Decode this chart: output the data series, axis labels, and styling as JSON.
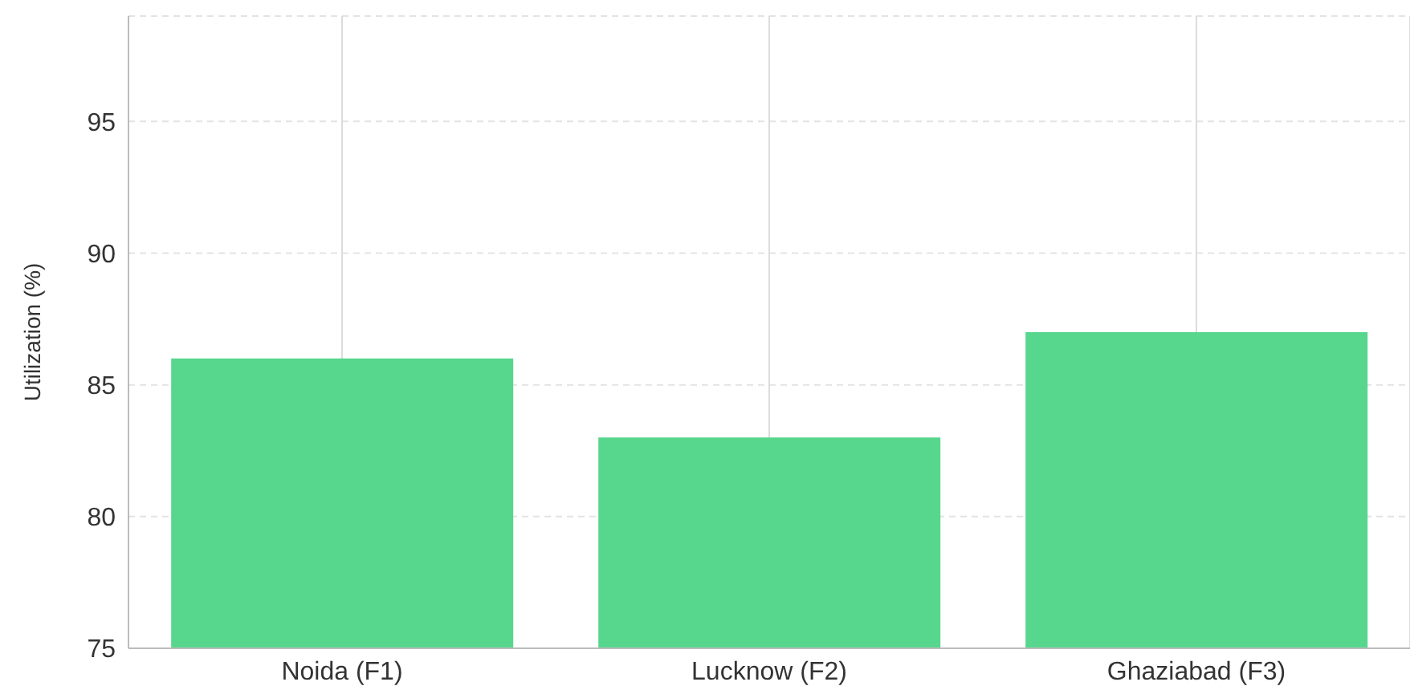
{
  "chart_data": {
    "type": "bar",
    "ylabel": "Utilization (%)",
    "categories": [
      "Noida (F1)",
      "Lucknow (F2)",
      "Ghaziabad (F3)"
    ],
    "values": [
      86,
      83,
      87
    ],
    "color": "#57d68d",
    "ylim": [
      75,
      99
    ],
    "yticks": [
      75,
      80,
      85,
      90,
      95
    ],
    "grid": true
  }
}
